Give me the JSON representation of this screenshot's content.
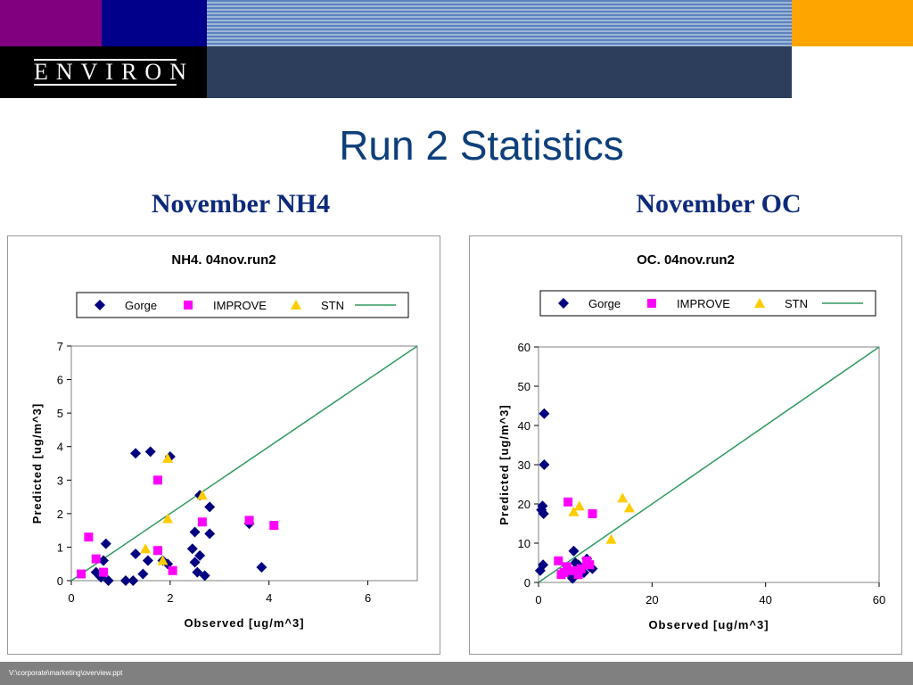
{
  "logo": "ENVIRON",
  "slide_title": "Run 2 Statistics",
  "subtitles": {
    "left": "November NH4",
    "right": "November OC"
  },
  "footer_path": "V:\\corporate\\marketing\\overview.ppt",
  "colors": {
    "banner_purple": "#800080",
    "banner_navy": "#00008b",
    "banner_stripes": "#6a8fbf",
    "banner_orange": "#ffa500",
    "banner_slate": "#2c3e5c",
    "title_blue": "#0d3f7a",
    "gorge": "#000080",
    "improve": "#ff00ff",
    "stn": "#ffcc00",
    "one_to_one": "#2e9a5e"
  },
  "chart_data": [
    {
      "type": "scatter",
      "title": "NH4.  04nov.run2",
      "xlabel": "Observed [ug/m^3]",
      "ylabel": "Predicted [ug/m^3]",
      "xlim": [
        0,
        7
      ],
      "ylim": [
        0,
        7
      ],
      "xticks": [
        "0",
        "2",
        "4",
        "6"
      ],
      "xtick_values": [
        0,
        2,
        4,
        6
      ],
      "yticks": [
        "0",
        "1",
        "2",
        "3",
        "4",
        "5",
        "6",
        "7"
      ],
      "ytick_values": [
        0,
        1,
        2,
        3,
        4,
        5,
        6,
        7
      ],
      "legend": "top",
      "grid": false,
      "series": [
        {
          "name": "Gorge",
          "marker": "diamond",
          "points": [
            [
              0.5,
              0.25
            ],
            [
              0.65,
              0.6
            ],
            [
              0.7,
              1.1
            ],
            [
              0.75,
              0.0
            ],
            [
              0.6,
              0.1
            ],
            [
              1.1,
              0.0
            ],
            [
              1.25,
              0.0
            ],
            [
              1.3,
              0.8
            ],
            [
              1.3,
              3.8
            ],
            [
              1.45,
              0.2
            ],
            [
              1.55,
              0.6
            ],
            [
              1.6,
              3.85
            ],
            [
              1.85,
              0.6
            ],
            [
              1.95,
              0.5
            ],
            [
              2.0,
              3.7
            ],
            [
              2.45,
              0.95
            ],
            [
              2.5,
              1.45
            ],
            [
              2.5,
              0.55
            ],
            [
              2.55,
              0.25
            ],
            [
              2.6,
              0.75
            ],
            [
              2.6,
              2.55
            ],
            [
              2.7,
              0.15
            ],
            [
              2.8,
              2.2
            ],
            [
              2.8,
              1.4
            ],
            [
              3.6,
              1.7
            ],
            [
              3.85,
              0.4
            ]
          ]
        },
        {
          "name": "IMPROVE",
          "marker": "square",
          "points": [
            [
              0.2,
              0.2
            ],
            [
              0.35,
              1.3
            ],
            [
              0.5,
              0.65
            ],
            [
              0.65,
              0.25
            ],
            [
              1.75,
              0.9
            ],
            [
              1.75,
              3.0
            ],
            [
              2.05,
              0.3
            ],
            [
              2.65,
              1.75
            ],
            [
              3.6,
              1.8
            ],
            [
              4.1,
              1.65
            ]
          ]
        },
        {
          "name": "STN",
          "marker": "triangle",
          "points": [
            [
              1.5,
              0.95
            ],
            [
              1.85,
              0.6
            ],
            [
              1.95,
              1.85
            ],
            [
              1.95,
              3.65
            ],
            [
              2.65,
              2.55
            ]
          ]
        },
        {
          "name": "",
          "marker": "line",
          "points": [
            [
              0,
              0
            ],
            [
              7,
              7
            ]
          ]
        }
      ]
    },
    {
      "type": "scatter",
      "title": "OC.  04nov.run2",
      "xlabel": "Observed [ug/m^3]",
      "ylabel": "Predicted [ug/m^3]",
      "xlim": [
        0,
        60
      ],
      "ylim": [
        0,
        60
      ],
      "xticks": [
        "0",
        "20",
        "40",
        "60"
      ],
      "xtick_values": [
        0,
        20,
        40,
        60
      ],
      "yticks": [
        "0",
        "10",
        "20",
        "30",
        "40",
        "50",
        "60"
      ],
      "ytick_values": [
        0,
        10,
        20,
        30,
        40,
        50,
        60
      ],
      "legend": "top",
      "grid": false,
      "series": [
        {
          "name": "Gorge",
          "marker": "diamond",
          "points": [
            [
              0.3,
              3.0
            ],
            [
              0.5,
              18.5
            ],
            [
              0.7,
              19.5
            ],
            [
              0.8,
              4.5
            ],
            [
              0.9,
              17.5
            ],
            [
              1.0,
              30.0
            ],
            [
              1.0,
              43.0
            ],
            [
              5.0,
              3.0
            ],
            [
              5.5,
              2.0
            ],
            [
              6.0,
              1.0
            ],
            [
              6.2,
              8.0
            ],
            [
              6.5,
              5.0
            ],
            [
              7.0,
              4.5
            ],
            [
              7.5,
              3.0
            ],
            [
              8.0,
              2.5
            ],
            [
              8.5,
              6.0
            ],
            [
              9.0,
              4.0
            ],
            [
              9.5,
              3.5
            ]
          ]
        },
        {
          "name": "IMPROVE",
          "marker": "square",
          "points": [
            [
              3.5,
              5.5
            ],
            [
              4.0,
              2.0
            ],
            [
              4.5,
              2.5
            ],
            [
              5.0,
              4.0
            ],
            [
              5.2,
              20.5
            ],
            [
              6.0,
              3.0
            ],
            [
              7.0,
              2.0
            ],
            [
              7.5,
              3.5
            ],
            [
              8.5,
              5.5
            ],
            [
              9.0,
              4.5
            ],
            [
              9.5,
              17.5
            ]
          ]
        },
        {
          "name": "STN",
          "marker": "triangle",
          "points": [
            [
              6.2,
              18.0
            ],
            [
              7.2,
              19.5
            ],
            [
              12.8,
              11.0
            ],
            [
              14.8,
              21.5
            ],
            [
              16.0,
              19.0
            ]
          ]
        },
        {
          "name": "",
          "marker": "line",
          "points": [
            [
              0,
              0
            ],
            [
              60,
              60
            ]
          ]
        }
      ]
    }
  ]
}
